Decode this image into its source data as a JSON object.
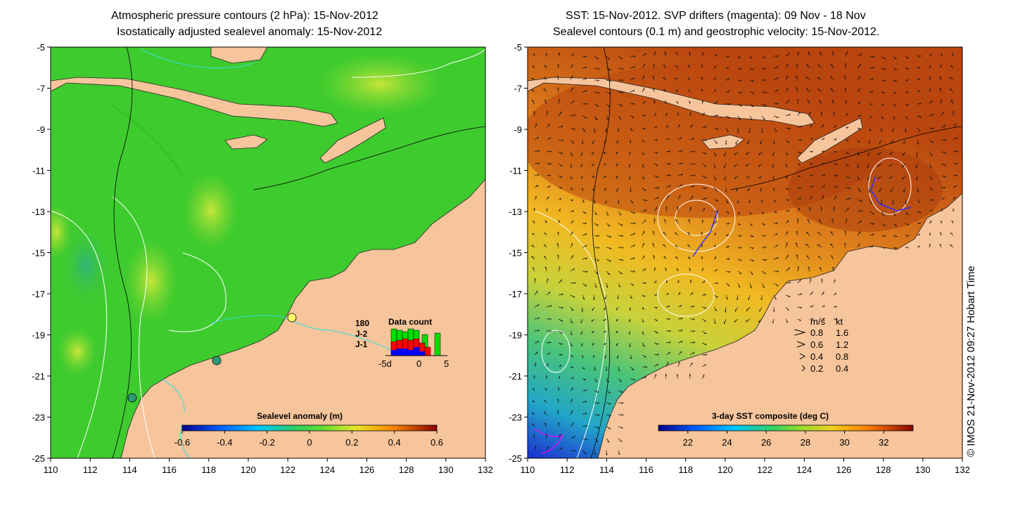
{
  "left_panel": {
    "title_line1": "Atmospheric pressure contours (2 hPa): 15-Nov-2012",
    "title_line2": "Isostatically adjusted sealevel anomaly: 15-Nov-2012",
    "colorbar_label": "Sealevel anomaly (m)",
    "colorbar_ticks": [
      "-0.6",
      "-0.4",
      "-0.2",
      "0",
      "0.2",
      "0.4",
      "0.6"
    ],
    "colorbar_range": [
      -0.6,
      0.6
    ],
    "legend": {
      "satellites": [
        {
          "name": "180",
          "color": "#00a000"
        },
        {
          "name": "J-2",
          "color": "#ff0000"
        },
        {
          "name": "J-1",
          "color": "#0000ff"
        }
      ],
      "data_count_title": "Data count",
      "data_count_ticks": [
        "-5d",
        "0",
        "5"
      ]
    }
  },
  "right_panel": {
    "title_line1": "SST: 15-Nov-2012. SVP drifters (magenta): 09 Nov - 18 Nov",
    "title_line2": "Sealevel contours (0.1 m) and geostrophic velocity: 15-Nov-2012.",
    "colorbar_label": "3-day SST composite (deg C)",
    "colorbar_ticks": [
      "22",
      "24",
      "26",
      "28",
      "30",
      "32"
    ],
    "colorbar_range": [
      20.5,
      33.5
    ],
    "speed_legend": {
      "header_ms": "m/s",
      "header_kt": "kt",
      "rows": [
        {
          "ms": "0.8",
          "kt": "1.6"
        },
        {
          "ms": "0.6",
          "kt": "1.2"
        },
        {
          "ms": "0.4",
          "kt": "0.8"
        },
        {
          "ms": "0.2",
          "kt": "0.4"
        }
      ]
    }
  },
  "axes": {
    "lon_ticks": [
      "110",
      "112",
      "114",
      "116",
      "118",
      "120",
      "122",
      "124",
      "126",
      "128",
      "130",
      "132"
    ],
    "lat_ticks": [
      "-5",
      "-7",
      "-9",
      "-11",
      "-13",
      "-15",
      "-17",
      "-19",
      "-21",
      "-23",
      "-25"
    ],
    "lon_range": [
      110,
      132
    ],
    "lat_range": [
      -25,
      -5
    ]
  },
  "footer": {
    "copyright": "© IMOS 21-Nov-2012 09:27 Hobart Time"
  },
  "colors": {
    "land": "#f7c59c",
    "ocean_left": "#3ecb2e",
    "ocean_right_warm": "#d8731a"
  }
}
